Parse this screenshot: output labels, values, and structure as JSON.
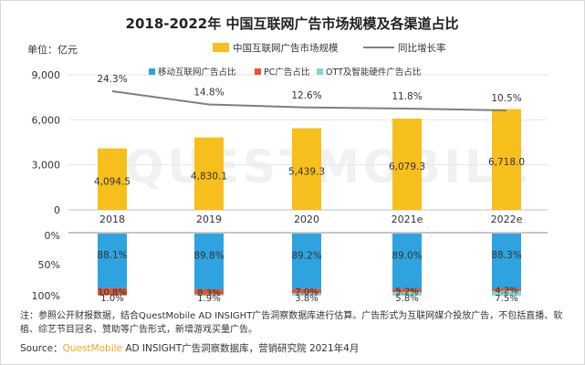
{
  "chart_data": {
    "type": "bar",
    "title": "2018-2022年 中国互联网广告市场规模及各渠道占比",
    "unit_label": "单位：亿元",
    "categories": [
      "2018",
      "2019",
      "2020",
      "2021e",
      "2022e"
    ],
    "top": {
      "bar_series": {
        "name": "中国互联网广告市场规模",
        "values": [
          4094.5,
          4830.1,
          5439.3,
          6079.3,
          6718.0
        ],
        "labels": [
          "4,094.5",
          "4,830.1",
          "5,439.3",
          "6,079.3",
          "6,718.0"
        ],
        "color": "#f7bf1b"
      },
      "line_series": {
        "name": "同比增长率",
        "values": [
          24.3,
          14.8,
          12.6,
          11.8,
          10.5
        ],
        "labels": [
          "24.3%",
          "14.8%",
          "12.6%",
          "11.8%",
          "10.5%"
        ],
        "color": "#7f7f7f"
      },
      "y_ticks": [
        "0",
        "3,000",
        "6,000",
        "9,000"
      ],
      "ylim": [
        0,
        9000
      ],
      "grid": true
    },
    "bottom": {
      "legend": [
        {
          "name": "移动互联网广告占比",
          "color": "#2ea3df"
        },
        {
          "name": "PC广告占比",
          "color": "#e8542e"
        },
        {
          "name": "OTT及智能硬件广告占比",
          "color": "#7fd8d3"
        }
      ],
      "y_ticks": [
        "0%",
        "50%",
        "100%"
      ],
      "mobile": {
        "values": [
          88.1,
          89.8,
          89.2,
          89.0,
          88.3
        ],
        "labels": [
          "88.1%",
          "89.8%",
          "89.2%",
          "89.0%",
          "88.3%"
        ]
      },
      "pc": {
        "values": [
          10.8,
          8.3,
          7.0,
          5.2,
          4.2
        ],
        "labels": [
          "10.8%",
          "8.3%",
          "7.0%",
          "5.2%",
          "4.2%"
        ]
      },
      "ott": {
        "values": [
          1.0,
          1.9,
          3.8,
          5.8,
          7.5
        ],
        "labels": [
          "1.0%",
          "1.9%",
          "3.8%",
          "5.8%",
          "7.5%"
        ]
      }
    },
    "watermark": "QUESTMOBILE"
  },
  "note": "注：参照公开财报数据，结合QuestMobile AD INSIGHT广告洞察数据库进行估算。广告形式为互联网媒介投放广告，不包括直播、软植、综艺节目冠名、赞助等广告形式，新增游戏买量广告。",
  "source": {
    "prefix": "Source：",
    "brand": "QuestMobile",
    "rest": " AD INSIGHT广告洞察数据库，营销研究院 2021年4月"
  }
}
